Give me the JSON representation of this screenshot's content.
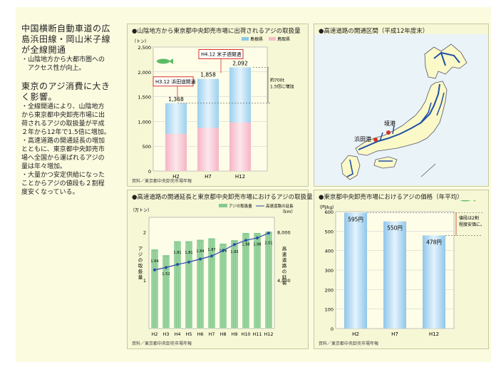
{
  "left": {
    "heading1": [
      "中国横断自動車道の広",
      "島浜田線・岡山米子線",
      "が全線開通"
    ],
    "bullets1": [
      "・山陰地方から大都市圏への",
      "　アクセス性が向上。"
    ],
    "heading2": [
      "東京のアジ消費に大き",
      "く影響。"
    ],
    "bullets2": [
      "・全線開通により、山陰地方",
      "から東京都中央卸売市場に出",
      "荷されるアジの取扱量が平成",
      "２年から12年で1.5倍に増加。",
      "・高速道路の開通延長の増加",
      "とともに、東京都中央卸売市",
      "場へ全国から運ばれるアジの",
      "量は年々増加。",
      "・大量かつ安定供給になった",
      "ことからアジの値段も２割程",
      "度安くなっている。"
    ]
  },
  "panel1": {
    "title": "●山陰地方から東京都中央卸売市場に出荷されるアジの取扱量",
    "source": "資料／東京都中央卸売市場年報"
  },
  "panel2": {
    "title": "●高速道路の開通区間（平成12年度末）",
    "label_hamada": "浜田港",
    "label_sakai": "境港"
  },
  "panel3": {
    "title": "●高速道路の開通延長と東京都中央卸売市場におけるアジの取扱量",
    "source": "資料／東京都中央卸売市場年報"
  },
  "panel4": {
    "title": "●東京都中央卸売市場におけるアジの価格（年平均）",
    "source": "資料／東京都中央卸売市場年報"
  },
  "colors": {
    "bar_blue": "#8ec8ea",
    "bar_pink": "#f5bcc8",
    "green": "#86c98e",
    "line": "#2a4aa8",
    "fish": "#5dbb63",
    "red": "#d9302a"
  },
  "chart_data": [
    {
      "type": "bar",
      "categories": [
        "H2",
        "H7",
        "H12"
      ],
      "values": [
        1368,
        1858,
        2092
      ],
      "value_labels": [
        "1,368",
        "1,858",
        "2,092"
      ],
      "pink_values": [
        750,
        870,
        980
      ],
      "legend": [
        "島根県",
        "鳥取県"
      ],
      "yunit": "（トン）",
      "yticks": [
        "0",
        "500",
        "1,000",
        "1,500",
        "2,000",
        "2,500"
      ],
      "ylim": [
        0,
        2500
      ],
      "annotations": [
        "H3.12 浜田道開通",
        "H4.12 米子道開通",
        "約700t",
        "1.5倍に増加"
      ]
    },
    {
      "type": "bar",
      "categories": [
        "H2",
        "H3",
        "H4",
        "H5",
        "H6",
        "H7",
        "H8",
        "H9",
        "H10",
        "H11",
        "H12"
      ],
      "values": [
        1.64,
        1.52,
        1.81,
        1.81,
        1.84,
        1.87,
        1.76,
        1.83,
        1.98,
        1.98,
        2.01
      ],
      "value_labels": [
        "1.64",
        "1.52",
        "1.81",
        "1.81",
        "1.84",
        "1.87",
        "1.76",
        "1.83",
        "1.98",
        "1.98",
        "2.01"
      ],
      "line_values": [
        4850,
        5050,
        5300,
        5500,
        5750,
        6000,
        6450,
        6950,
        7300,
        7500,
        7900
      ],
      "legend": [
        "アジの取扱量",
        "高速道路の延長"
      ],
      "ylabel_left": "アジの取扱量",
      "ylabel_right": "高速道路の延長",
      "yunit_left": "（万トン）",
      "yunit_right": "（km）",
      "yticks_left": [
        "1",
        "2"
      ],
      "yticks_right": [
        "4,000",
        "8,000"
      ],
      "ylim_left": [
        0,
        2.3
      ],
      "ylim_right": [
        0,
        9200
      ]
    },
    {
      "type": "bar",
      "categories": [
        "H2",
        "H7",
        "H12"
      ],
      "values": [
        595,
        550,
        478
      ],
      "value_labels": [
        "595円",
        "550円",
        "478円"
      ],
      "yunit": "（円/kg）",
      "yticks": [
        "0",
        "100",
        "200",
        "300",
        "400",
        "500",
        "600"
      ],
      "ylim": [
        0,
        600
      ],
      "annotations": [
        "値段は2割",
        "程度安価に。"
      ]
    }
  ]
}
